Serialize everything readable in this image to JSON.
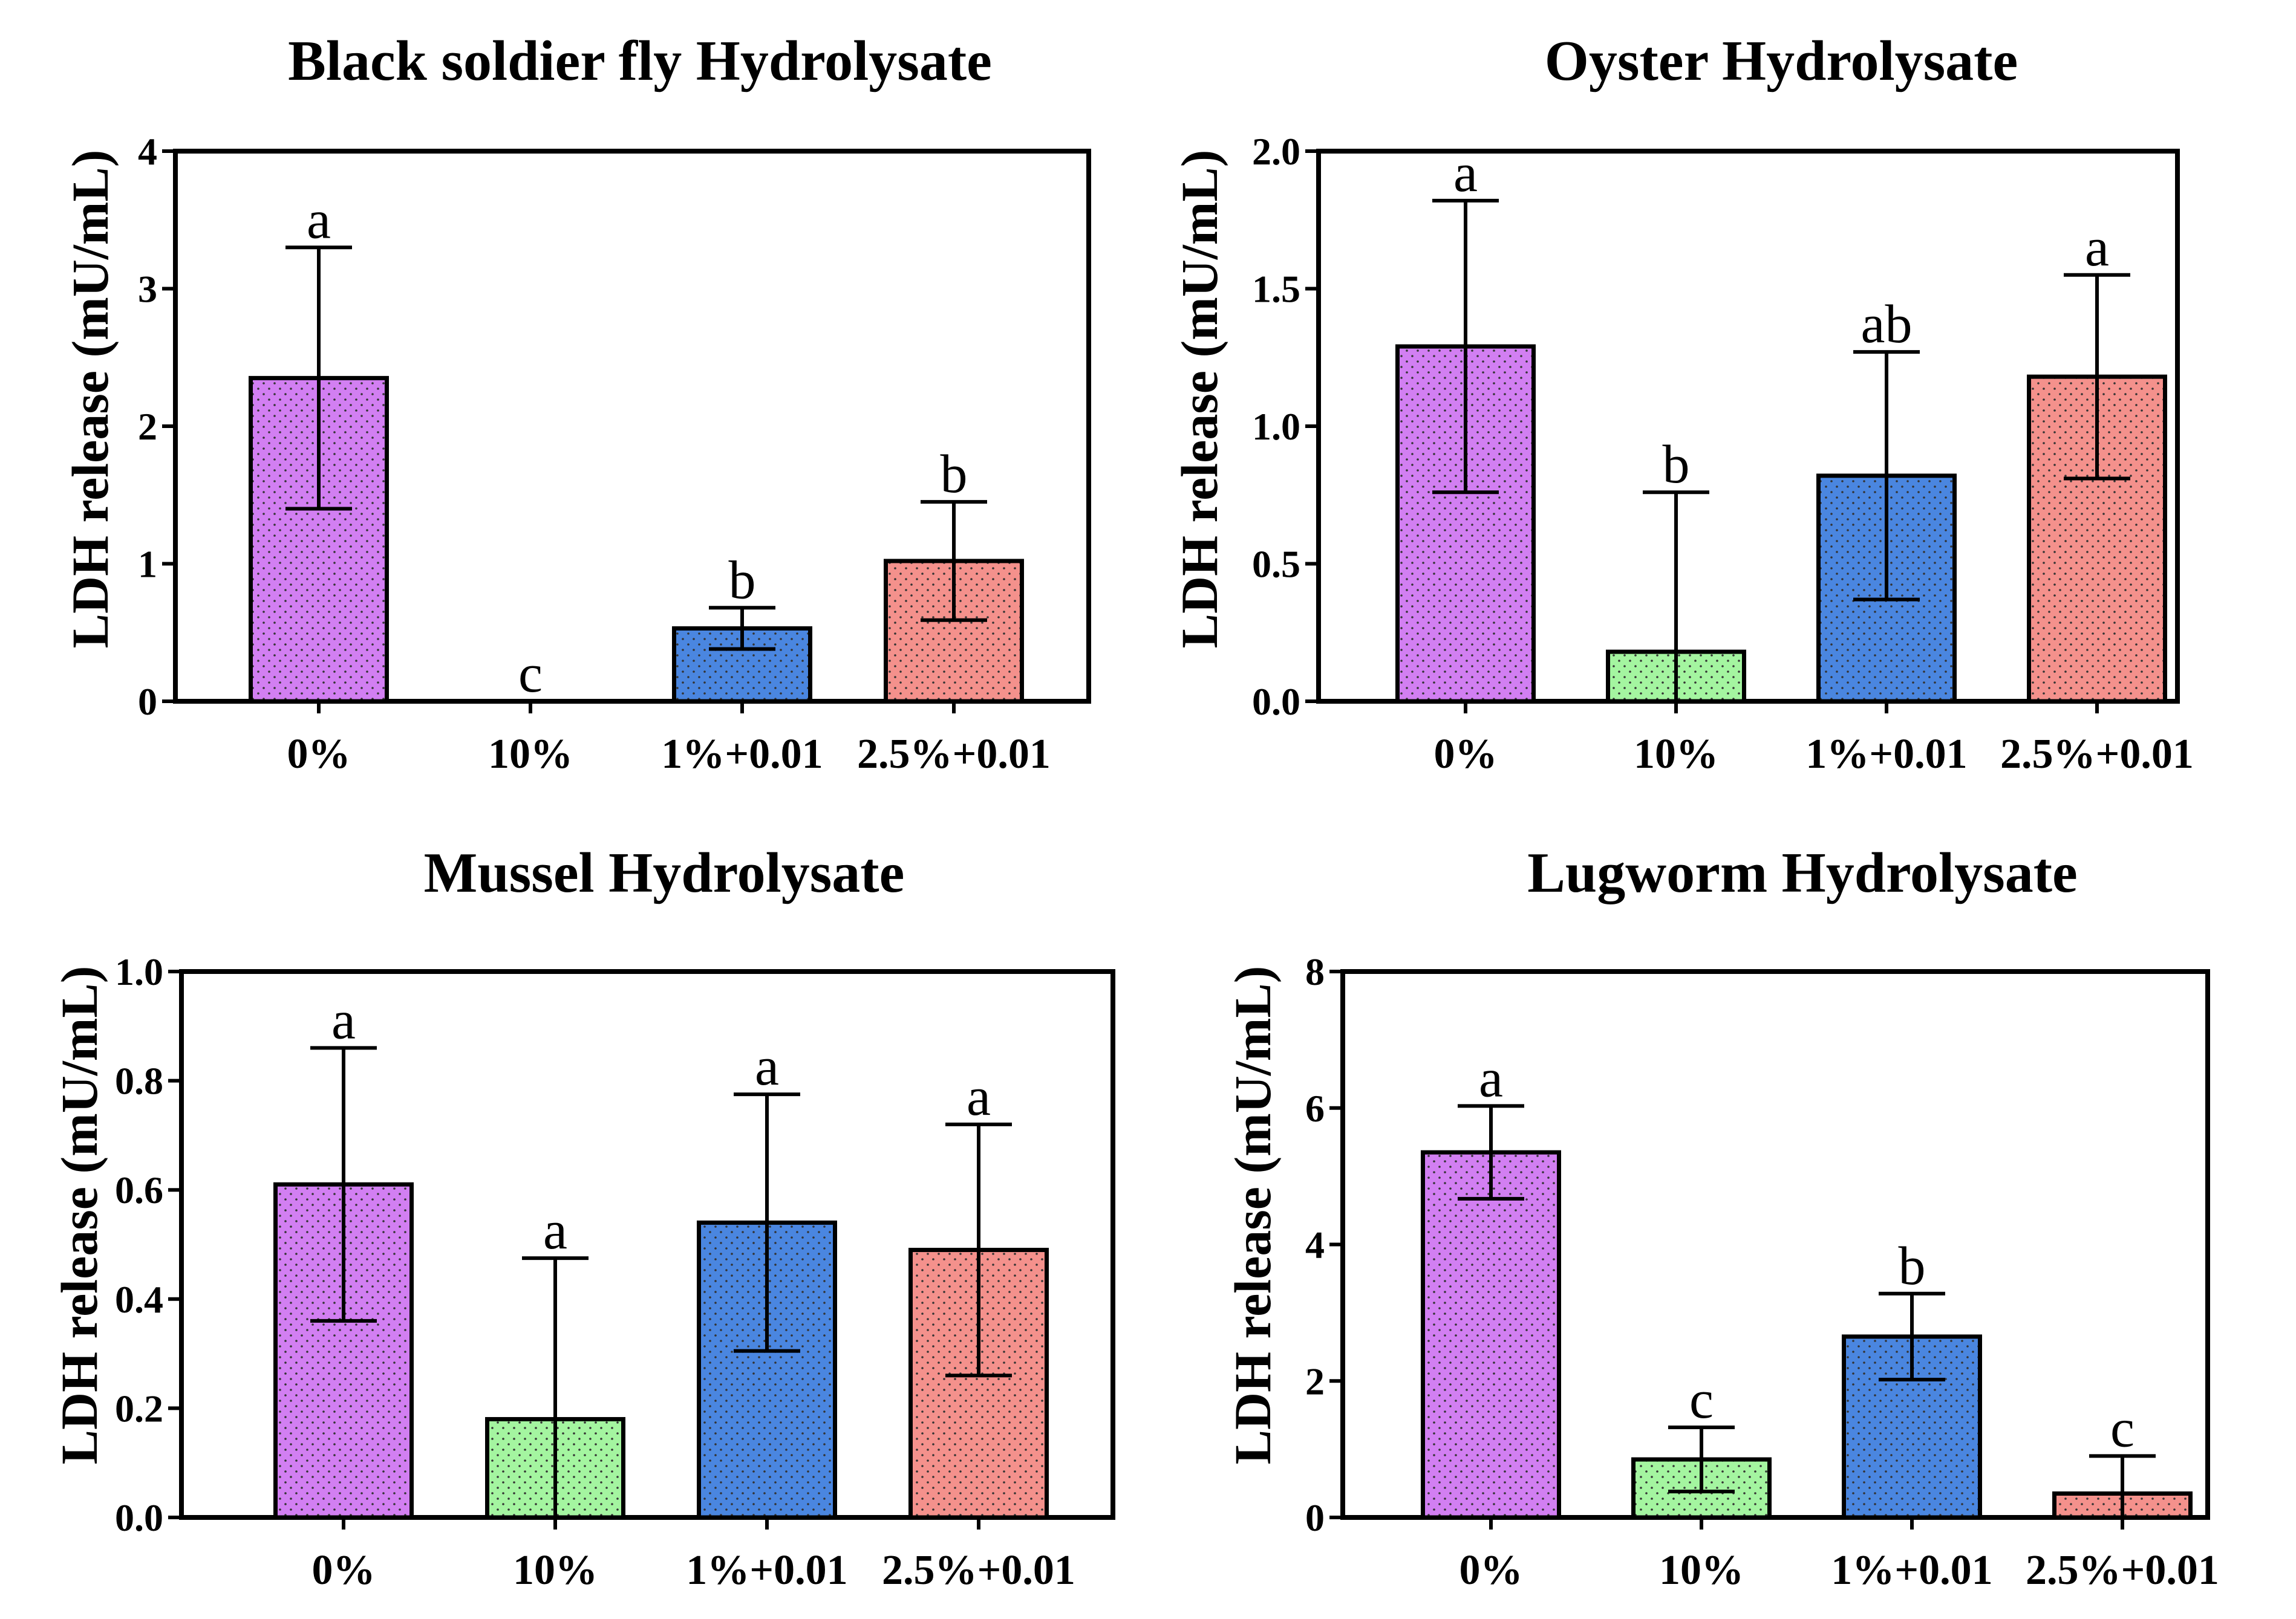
{
  "chart_data": [
    {
      "type": "bar",
      "title": "Black soldier fly Hydrolysate",
      "ylabel": "LDH release (mU/mL)",
      "xlabel": "",
      "categories": [
        "0%",
        "10%",
        "1%+0.01",
        "2.5%+0.01"
      ],
      "values": [
        2.35,
        0.0,
        0.53,
        1.02
      ],
      "errors": [
        0.95,
        0.0,
        0.15,
        0.43
      ],
      "significance": [
        "a",
        "c",
        "b",
        "b"
      ],
      "ylim": [
        0,
        4
      ],
      "yticks": [
        "0",
        "1",
        "2",
        "3",
        "4"
      ],
      "ytick_values": [
        0,
        1,
        2,
        3,
        4
      ]
    },
    {
      "type": "bar",
      "title": "Oyster Hydrolysate",
      "ylabel": "LDH release (mU/mL)",
      "xlabel": "",
      "categories": [
        "0%",
        "10%",
        "1%+0.01",
        "2.5%+0.01"
      ],
      "values": [
        1.29,
        0.18,
        0.82,
        1.18
      ],
      "errors": [
        0.53,
        0.58,
        0.45,
        0.37
      ],
      "significance": [
        "a",
        "b",
        "ab",
        "a"
      ],
      "ylim": [
        0,
        2.0
      ],
      "yticks": [
        "0.0",
        "0.5",
        "1.0",
        "1.5",
        "2.0"
      ],
      "ytick_values": [
        0,
        0.5,
        1.0,
        1.5,
        2.0
      ]
    },
    {
      "type": "bar",
      "title": "Mussel Hydrolysate",
      "ylabel": "LDH release (mU/mL)",
      "xlabel": "",
      "categories": [
        "0%",
        "10%",
        "1%+0.01",
        "2.5%+0.01"
      ],
      "values": [
        0.61,
        0.18,
        0.54,
        0.49
      ],
      "errors": [
        0.25,
        0.295,
        0.235,
        0.23
      ],
      "significance": [
        "a",
        "a",
        "a",
        "a"
      ],
      "ylim": [
        0,
        1.0
      ],
      "yticks": [
        "0.0",
        "0.2",
        "0.4",
        "0.6",
        "0.8",
        "1.0"
      ],
      "ytick_values": [
        0,
        0.2,
        0.4,
        0.6,
        0.8,
        1.0
      ]
    },
    {
      "type": "bar",
      "title": "Lugworm Hydrolysate",
      "ylabel": "LDH release (mU/mL)",
      "xlabel": "",
      "categories": [
        "0%",
        "10%",
        "1%+0.01",
        "2.5%+0.01"
      ],
      "values": [
        5.35,
        0.85,
        2.65,
        0.35
      ],
      "errors": [
        0.68,
        0.47,
        0.63,
        0.55
      ],
      "significance": [
        "a",
        "c",
        "b",
        "c"
      ],
      "ylim": [
        0,
        8
      ],
      "yticks": [
        "0",
        "2",
        "4",
        "6",
        "8"
      ],
      "ytick_values": [
        0,
        2,
        4,
        6,
        8
      ]
    }
  ],
  "colors": {
    "bars": [
      "#d27ff2",
      "#a4f5a0",
      "#4a86e0",
      "#f4918c"
    ],
    "axis": "#000000",
    "dots": "#3a3a3a"
  }
}
